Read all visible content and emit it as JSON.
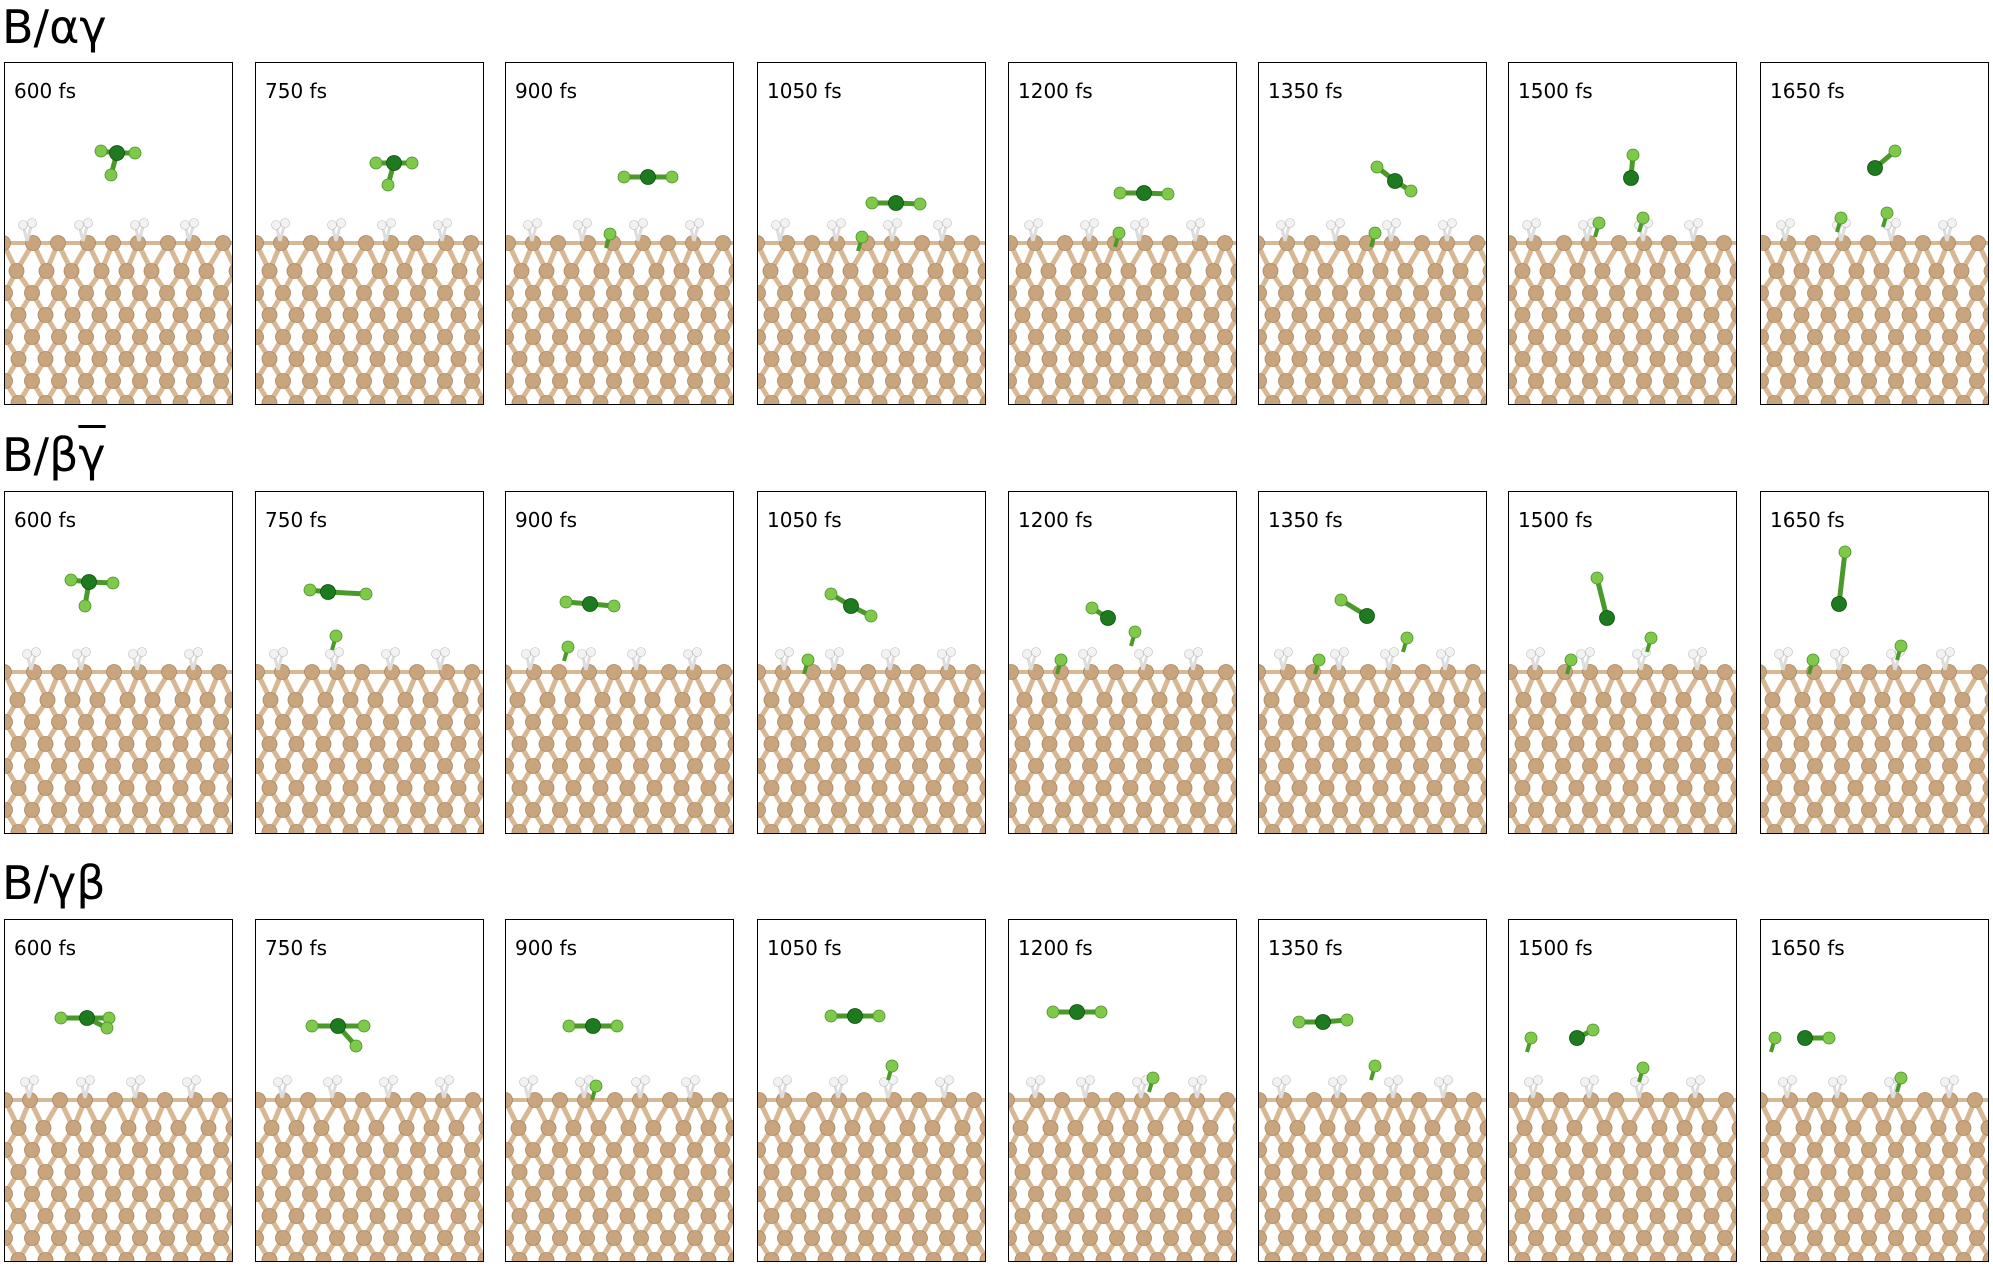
{
  "rows": [
    {
      "label_base": "B/",
      "label_sites": [
        "α",
        "γ"
      ],
      "label_overline": [
        false,
        true
      ],
      "frames": [
        "600 fs",
        "750 fs",
        "900 fs",
        "1050 fs",
        "1200 fs",
        "1350 fs",
        "1500 fs",
        "1650 fs"
      ]
    },
    {
      "label_base": "B/",
      "label_sites": [
        "β",
        "γ"
      ],
      "label_overline": [
        false,
        true
      ],
      "frames": [
        "600 fs",
        "750 fs",
        "900 fs",
        "1050 fs",
        "1200 fs",
        "1350 fs",
        "1500 fs",
        "1650 fs"
      ]
    },
    {
      "label_base": "B/",
      "label_sites": [
        "γ",
        "β"
      ],
      "label_overline": [
        false,
        false
      ],
      "frames": [
        "600 fs",
        "750 fs",
        "900 fs",
        "1050 fs",
        "1200 fs",
        "1350 fs",
        "1500 fs",
        "1650 fs"
      ]
    }
  ],
  "colors": {
    "substrate_atom": "#c9a57e",
    "substrate_bond": "#d8b894",
    "hydrogen": "#f2f2f2",
    "fluorine": "#7fc94a",
    "boron_center": "#1e7a1e",
    "frame_border": "#000000"
  }
}
